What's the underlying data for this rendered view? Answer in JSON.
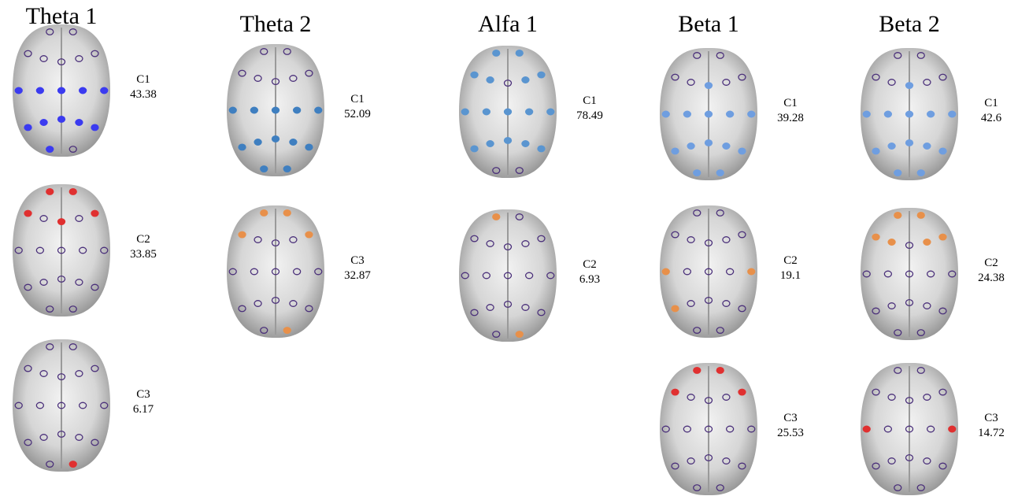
{
  "columns": [
    {
      "title": "Theta 1",
      "panels": [
        {
          "label": "C1",
          "value": 43.38
        },
        {
          "label": "C2",
          "value": 33.85
        },
        {
          "label": "C3",
          "value": 6.17
        }
      ]
    },
    {
      "title": "Theta 2",
      "panels": [
        {
          "label": "C1",
          "value": 52.09
        },
        {
          "label": "C3",
          "value": 32.87
        }
      ]
    },
    {
      "title": "Alfa 1",
      "panels": [
        {
          "label": "C1",
          "value": 78.49
        },
        {
          "label": "C2",
          "value": 6.93
        }
      ]
    },
    {
      "title": "Beta 1",
      "panels": [
        {
          "label": "C1",
          "value": 39.28
        },
        {
          "label": "C2",
          "value": 19.1
        },
        {
          "label": "C3",
          "value": 25.53
        }
      ]
    },
    {
      "title": "Beta 2",
      "panels": [
        {
          "label": "C1",
          "value": 42.6
        },
        {
          "label": "C2",
          "value": 24.38
        },
        {
          "label": "C3",
          "value": 14.72
        }
      ]
    }
  ]
}
